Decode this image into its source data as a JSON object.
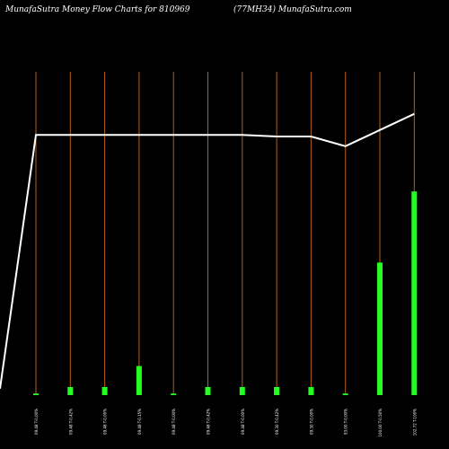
{
  "header": {
    "left": "MunafaSutra  Money Flow  Charts for 810969",
    "right": "(77MH34) MunafaSutra.com"
  },
  "chart_data": {
    "type": "bar",
    "title": "Money Flow Charts for 810969",
    "categories": [
      "09.48 T-0.00%",
      "09.48 T-0.42%",
      "09.48 T-0.00%",
      "09.48 T-0.15%",
      "09.48 T-0.00%",
      "09.48 T-0.42%",
      "09.48 T-0.00%",
      "09.30 T-0.42%",
      "09.30 T-0.00%",
      "93.00 T-0.00%",
      "100.00 T-0.50%",
      "102.72 T-100%"
    ],
    "series": [
      {
        "type": "bar",
        "values": [
          0.5,
          2.5,
          2.5,
          9,
          0.5,
          2.5,
          2.5,
          2.5,
          2.5,
          0.5,
          41,
          63
        ]
      },
      {
        "type": "line",
        "values": [
          80.5,
          80.5,
          80.5,
          80.5,
          80.5,
          80.5,
          80.5,
          80,
          80,
          77,
          82,
          87
        ]
      }
    ],
    "line_start": 2,
    "ylim": [
      0,
      100
    ],
    "colors": {
      "bars": "#22ff22",
      "line": "#ffffff",
      "gridlines": "#b55f1a",
      "background": "#000000"
    }
  }
}
